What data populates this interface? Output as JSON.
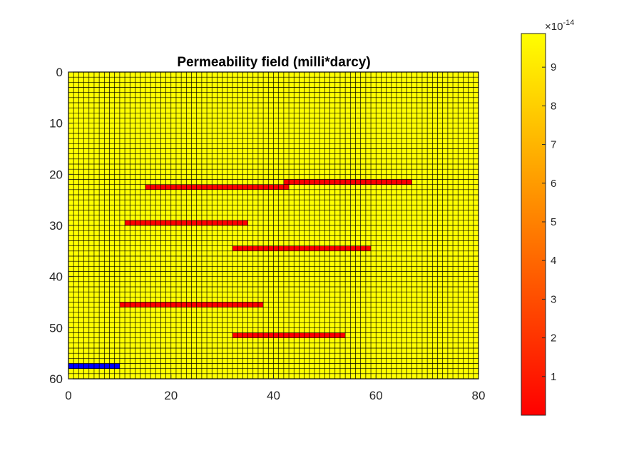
{
  "chart_data": {
    "type": "heatmap",
    "title": "Permeability field (milli*darcy)",
    "xlabel": "",
    "ylabel": "",
    "grid": {
      "nx": 80,
      "ny": 60
    },
    "xlim": [
      0,
      80
    ],
    "ylim": [
      0,
      60
    ],
    "y_reversed": true,
    "x_ticks": [
      "0",
      "20",
      "40",
      "60",
      "80"
    ],
    "y_ticks": [
      "0",
      "10",
      "20",
      "30",
      "40",
      "50",
      "60"
    ],
    "background_value": 9.87e-14,
    "colors": {
      "background": "#ffff00",
      "low": "#ff0000",
      "well": "#0000ff",
      "cell_edge": "#000000"
    },
    "low_permeability_strips": [
      {
        "row": 22,
        "x_start": 42,
        "x_end": 67,
        "value": 1e-15
      },
      {
        "row": 23,
        "x_start": 15,
        "x_end": 43,
        "value": 1e-15
      },
      {
        "row": 30,
        "x_start": 11,
        "x_end": 35,
        "value": 1e-15
      },
      {
        "row": 35,
        "x_start": 32,
        "x_end": 59,
        "value": 1e-15
      },
      {
        "row": 46,
        "x_start": 10,
        "x_end": 38,
        "value": 1e-15
      },
      {
        "row": 52,
        "x_start": 32,
        "x_end": 54,
        "value": 1e-15
      }
    ],
    "well_cells": {
      "row": 58,
      "x_start": 0,
      "x_end": 10,
      "color": "#0000ff"
    },
    "colorbar": {
      "ticks": [
        "1",
        "2",
        "3",
        "4",
        "5",
        "6",
        "7",
        "8",
        "9"
      ],
      "range": [
        0,
        9.87
      ],
      "multiplier_prefix": "×10",
      "multiplier_exponent": "-14",
      "colormap": "autumn"
    }
  }
}
